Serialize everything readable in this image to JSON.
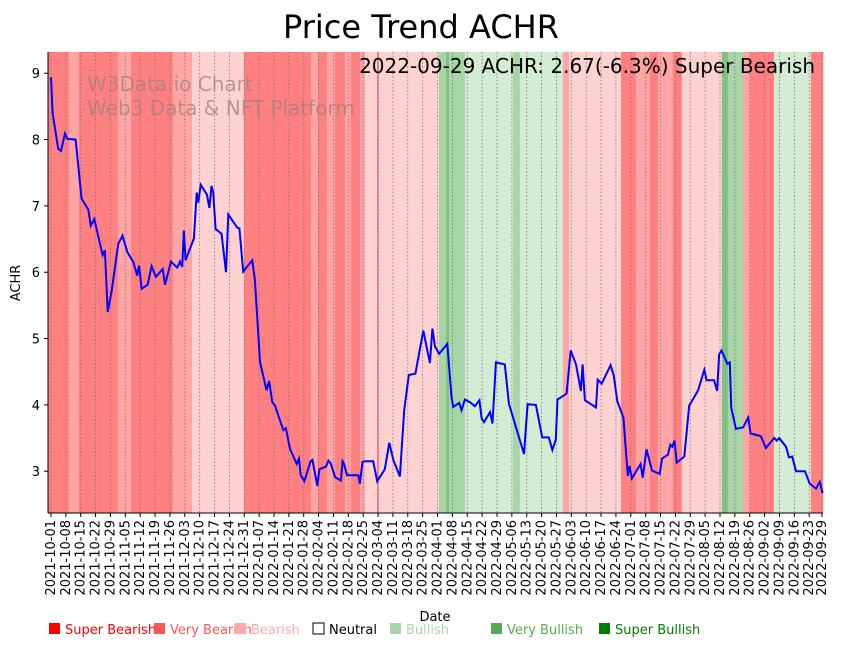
{
  "chart_data": {
    "type": "line",
    "title": "Price Trend ACHR",
    "xlabel": "Date",
    "ylabel": "ACHR",
    "annotation": "2022-09-29 ACHR: 2.67(-6.3%) Super Bearish",
    "watermark": [
      "W3Data.io Chart",
      "Web3 Data & NFT Platform"
    ],
    "start_date": "2021-10-01",
    "x_unit": "days since start_date",
    "xlim_days": [
      -1.4,
      363.5
    ],
    "ylim": [
      2.37,
      9.32
    ],
    "y_ticks": [
      3,
      4,
      5,
      6,
      7,
      8,
      9
    ],
    "x_tick_labels": [
      "2021-10-01",
      "2021-10-08",
      "2021-10-15",
      "2021-10-22",
      "2021-10-29",
      "2021-11-05",
      "2021-11-12",
      "2021-11-19",
      "2021-11-26",
      "2021-12-03",
      "2021-12-10",
      "2021-12-17",
      "2021-12-24",
      "2021-12-31",
      "2022-01-07",
      "2022-01-14",
      "2022-01-21",
      "2022-01-28",
      "2022-02-04",
      "2022-02-11",
      "2022-02-18",
      "2022-02-25",
      "2022-03-04",
      "2022-03-11",
      "2022-03-18",
      "2022-03-25",
      "2022-04-01",
      "2022-04-08",
      "2022-04-15",
      "2022-04-22",
      "2022-04-29",
      "2022-05-06",
      "2022-05-13",
      "2022-05-20",
      "2022-05-27",
      "2022-06-03",
      "2022-06-10",
      "2022-06-17",
      "2022-06-24",
      "2022-07-01",
      "2022-07-08",
      "2022-07-15",
      "2022-07-22",
      "2022-07-29",
      "2022-08-05",
      "2022-08-12",
      "2022-08-19",
      "2022-08-26",
      "2022-09-02",
      "2022-09-09",
      "2022-09-16",
      "2022-09-23",
      "2022-09-29"
    ],
    "x_tick_days": [
      0,
      7,
      14,
      21,
      28,
      35,
      42,
      49,
      56,
      63,
      70,
      77,
      84,
      91,
      98,
      105,
      112,
      119,
      126,
      133,
      140,
      147,
      154,
      161,
      168,
      175,
      182,
      189,
      196,
      203,
      210,
      217,
      224,
      231,
      238,
      245,
      252,
      259,
      266,
      273,
      280,
      287,
      294,
      301,
      308,
      315,
      322,
      329,
      336,
      343,
      350,
      357,
      363
    ],
    "grid": "vertical dotted at x ticks",
    "line_color": "#0000ff",
    "series": [
      {
        "name": "ACHR",
        "points": [
          [
            0,
            8.94
          ],
          [
            0.8,
            8.39
          ],
          [
            3.4,
            7.86
          ],
          [
            4.7,
            7.83
          ],
          [
            6.6,
            8.09
          ],
          [
            7.7,
            8.01
          ],
          [
            11.6,
            8.0
          ],
          [
            14.4,
            7.11
          ],
          [
            17.6,
            6.94
          ],
          [
            18.7,
            6.7
          ],
          [
            20.4,
            6.8
          ],
          [
            24.3,
            6.26
          ],
          [
            25.4,
            6.33
          ],
          [
            26.7,
            5.4
          ],
          [
            28.6,
            5.72
          ],
          [
            31.7,
            6.43
          ],
          [
            33.7,
            6.55
          ],
          [
            35.9,
            6.31
          ],
          [
            38.8,
            6.15
          ],
          [
            40.6,
            5.95
          ],
          [
            41.5,
            6.1
          ],
          [
            42.7,
            5.75
          ],
          [
            45.5,
            5.81
          ],
          [
            47.4,
            6.09
          ],
          [
            49.4,
            5.93
          ],
          [
            52.6,
            6.05
          ],
          [
            53.7,
            5.81
          ],
          [
            56.5,
            6.16
          ],
          [
            59.5,
            6.07
          ],
          [
            60.7,
            6.16
          ],
          [
            61.8,
            6.08
          ],
          [
            62.6,
            6.63
          ],
          [
            63.4,
            6.18
          ],
          [
            67.3,
            6.51
          ],
          [
            68.6,
            7.2
          ],
          [
            69.3,
            7.05
          ],
          [
            70.5,
            7.32
          ],
          [
            73.4,
            7.17
          ],
          [
            74.6,
            6.97
          ],
          [
            75.6,
            7.3
          ],
          [
            76.4,
            7.21
          ],
          [
            77.5,
            6.65
          ],
          [
            80.3,
            6.58
          ],
          [
            82.4,
            6.0
          ],
          [
            83.5,
            6.87
          ],
          [
            87.8,
            6.67
          ],
          [
            88.7,
            6.66
          ],
          [
            90.5,
            6.01
          ],
          [
            94.8,
            6.18
          ],
          [
            96,
            5.88
          ],
          [
            98.4,
            4.65
          ],
          [
            101.5,
            4.22
          ],
          [
            102.7,
            4.36
          ],
          [
            104.2,
            4.04
          ],
          [
            105.5,
            3.99
          ],
          [
            109.4,
            3.62
          ],
          [
            110.6,
            3.65
          ],
          [
            112.5,
            3.34
          ],
          [
            115.7,
            3.11
          ],
          [
            116.8,
            3.19
          ],
          [
            117.6,
            2.94
          ],
          [
            119.3,
            2.85
          ],
          [
            122.2,
            3.15
          ],
          [
            123.1,
            3.17
          ],
          [
            125.4,
            2.78
          ],
          [
            126.4,
            3.03
          ],
          [
            129.5,
            3.07
          ],
          [
            130.6,
            3.16
          ],
          [
            131.7,
            3.12
          ],
          [
            133.8,
            2.91
          ],
          [
            136.5,
            2.86
          ],
          [
            137.3,
            3.15
          ],
          [
            138,
            3.11
          ],
          [
            139.4,
            2.94
          ],
          [
            144.7,
            2.94
          ],
          [
            145.4,
            2.81
          ],
          [
            146.7,
            3.14
          ],
          [
            147.8,
            3.15
          ],
          [
            151.7,
            3.15
          ],
          [
            153.6,
            2.85
          ],
          [
            157.2,
            3.03
          ],
          [
            159.3,
            3.43
          ],
          [
            161.2,
            3.17
          ],
          [
            164.3,
            2.92
          ],
          [
            166.3,
            3.92
          ],
          [
            168.5,
            4.45
          ],
          [
            171.6,
            4.47
          ],
          [
            175.3,
            5.12
          ],
          [
            178.4,
            4.63
          ],
          [
            179.6,
            5.15
          ],
          [
            180.8,
            4.88
          ],
          [
            182.8,
            4.77
          ],
          [
            186.6,
            4.92
          ],
          [
            188.6,
            4.12
          ],
          [
            189.4,
            3.97
          ],
          [
            192.2,
            4.03
          ],
          [
            193.3,
            3.92
          ],
          [
            194.9,
            4.08
          ],
          [
            197.3,
            4.04
          ],
          [
            199.6,
            3.98
          ],
          [
            201.7,
            4.07
          ],
          [
            202.8,
            3.79
          ],
          [
            203.9,
            3.74
          ],
          [
            206.7,
            3.89
          ],
          [
            207.9,
            3.72
          ],
          [
            209.5,
            4.64
          ],
          [
            213.7,
            4.61
          ],
          [
            215.6,
            4.02
          ],
          [
            222.7,
            3.26
          ],
          [
            224.4,
            4.01
          ],
          [
            228.3,
            4.0
          ],
          [
            231.3,
            3.51
          ],
          [
            234.4,
            3.51
          ],
          [
            236.1,
            3.32
          ],
          [
            237.7,
            3.48
          ],
          [
            238.5,
            4.08
          ],
          [
            242.8,
            4.17
          ],
          [
            244.7,
            4.82
          ],
          [
            247.2,
            4.61
          ],
          [
            249.5,
            4.21
          ],
          [
            250.3,
            4.61
          ],
          [
            251.4,
            4.07
          ],
          [
            256.6,
            3.96
          ],
          [
            257.4,
            4.38
          ],
          [
            259.3,
            4.32
          ],
          [
            263.5,
            4.6
          ],
          [
            265,
            4.44
          ],
          [
            266.6,
            4.06
          ],
          [
            269.5,
            3.81
          ],
          [
            271.6,
            2.93
          ],
          [
            272.4,
            3.08
          ],
          [
            273.5,
            2.89
          ],
          [
            277.6,
            3.11
          ],
          [
            278.6,
            2.9
          ],
          [
            280.4,
            3.33
          ],
          [
            283,
            3.01
          ],
          [
            286.6,
            2.96
          ],
          [
            287.7,
            3.19
          ],
          [
            290.5,
            3.25
          ],
          [
            291.6,
            3.4
          ],
          [
            292.5,
            3.37
          ],
          [
            293.6,
            3.46
          ],
          [
            294.6,
            3.13
          ],
          [
            298.2,
            3.22
          ],
          [
            300.5,
            3.99
          ],
          [
            302.4,
            4.09
          ],
          [
            304.7,
            4.22
          ],
          [
            307.6,
            4.53
          ],
          [
            308.7,
            4.37
          ],
          [
            312.2,
            4.37
          ],
          [
            313.7,
            4.21
          ],
          [
            314.6,
            4.76
          ],
          [
            315.7,
            4.82
          ],
          [
            318.5,
            4.62
          ],
          [
            319.6,
            4.64
          ],
          [
            320.3,
            3.96
          ],
          [
            322.5,
            3.64
          ],
          [
            325.9,
            3.66
          ],
          [
            328.3,
            3.81
          ],
          [
            329.4,
            3.57
          ],
          [
            334.2,
            3.53
          ],
          [
            336.6,
            3.35
          ],
          [
            340.5,
            3.5
          ],
          [
            341.7,
            3.46
          ],
          [
            342.9,
            3.5
          ],
          [
            346.1,
            3.37
          ],
          [
            347.5,
            3.21
          ],
          [
            349,
            3.22
          ],
          [
            350.8,
            3.0
          ],
          [
            355,
            3.0
          ],
          [
            357.3,
            2.81
          ],
          [
            360.2,
            2.74
          ],
          [
            362,
            2.84
          ],
          [
            363.3,
            2.67
          ]
        ]
      }
    ],
    "sentiment_bands": [
      [
        -1.4,
        8.5,
        "super_bearish"
      ],
      [
        8.5,
        13.2,
        "very_bearish"
      ],
      [
        13.2,
        31.5,
        "super_bearish"
      ],
      [
        31.5,
        37.7,
        "very_bearish"
      ],
      [
        37.7,
        57.4,
        "super_bearish"
      ],
      [
        57.4,
        66.4,
        "very_bearish"
      ],
      [
        66.4,
        90.9,
        "bearish"
      ],
      [
        90.9,
        122.4,
        "super_bearish"
      ],
      [
        122.4,
        125.7,
        "very_bearish"
      ],
      [
        125.7,
        129.9,
        "super_bearish"
      ],
      [
        129.9,
        133.7,
        "very_bearish"
      ],
      [
        133.7,
        138.4,
        "super_bearish"
      ],
      [
        138.4,
        141.2,
        "very_bearish"
      ],
      [
        141.2,
        145.5,
        "super_bearish"
      ],
      [
        145.5,
        147.8,
        "very_bearish"
      ],
      [
        147.8,
        153.5,
        "bearish"
      ],
      [
        153.5,
        154.4,
        "super_bearish"
      ],
      [
        154.4,
        182.7,
        "bearish"
      ],
      [
        182.7,
        186,
        "very_bullish"
      ],
      [
        186,
        187.4,
        "super_bullish"
      ],
      [
        187.4,
        194.9,
        "very_bullish"
      ],
      [
        194.9,
        217.5,
        "bullish"
      ],
      [
        217.5,
        220.8,
        "very_bullish"
      ],
      [
        220.8,
        241,
        "bullish"
      ],
      [
        241,
        243.9,
        "very_bearish"
      ],
      [
        243.9,
        268.4,
        "bearish"
      ],
      [
        268.4,
        275.4,
        "super_bearish"
      ],
      [
        275.4,
        282,
        "very_bearish"
      ],
      [
        282,
        285.8,
        "super_bearish"
      ],
      [
        285.8,
        292.8,
        "very_bearish"
      ],
      [
        292.8,
        297,
        "super_bearish"
      ],
      [
        297,
        315.9,
        "bearish"
      ],
      [
        315.9,
        318.7,
        "super_bullish"
      ],
      [
        318.7,
        325.8,
        "very_bullish"
      ],
      [
        325.8,
        329.1,
        "very_bearish"
      ],
      [
        329.1,
        340.4,
        "super_bearish"
      ],
      [
        340.4,
        357.8,
        "bullish"
      ],
      [
        357.8,
        363.5,
        "super_bearish"
      ]
    ],
    "band_colors": {
      "super_bearish": "#ff8080",
      "very_bearish": "#ffa5a5",
      "bearish": "#ffd2d2",
      "neutral": "#ffffff",
      "bullish": "#d4ebd4",
      "very_bullish": "#a8d5a8",
      "super_bullish": "#80c080"
    },
    "legend": [
      {
        "label": "Super Bearish",
        "color": "#ff0000",
        "text_color": "#ff0000"
      },
      {
        "label": "Very Bearish",
        "color": "#ff5555",
        "text_color": "#ff5555"
      },
      {
        "label": "Bearish",
        "color": "#ffaaaa",
        "text_color": "#ffaaaa"
      },
      {
        "label": "Neutral",
        "color": "#ffffff",
        "text_color": "#000000"
      },
      {
        "label": "Bullish",
        "color": "#aad5aa",
        "text_color": "#aad5aa"
      },
      {
        "label": "Very Bullish",
        "color": "#55aa55",
        "text_color": "#55aa55"
      },
      {
        "label": "Super Bullish",
        "color": "#008000",
        "text_color": "#008000"
      }
    ],
    "legend_placement": "bottom"
  }
}
